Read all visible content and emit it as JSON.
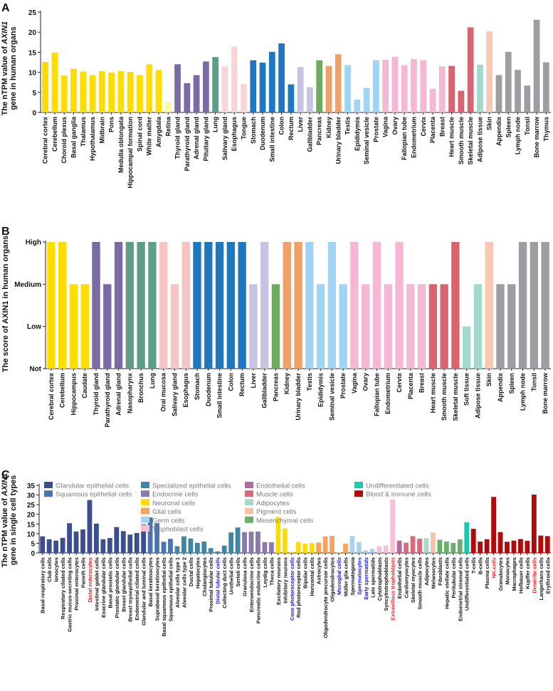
{
  "colors": {
    "neuronal": "#FFDD00",
    "neuronal_light": "#FFF6A6",
    "endocrine": "#7B6AA6",
    "lung": "#5E9E89",
    "oral_light": "#F9D6D6",
    "oral_pink": "#F5C5C5",
    "gi": "#1E78C1",
    "liver": "#C9C3E3",
    "pancreas": "#6FAB5E",
    "kidney": "#F0A16A",
    "testis": "#9FD4F4",
    "female": "#F5B7D3",
    "muscle": "#D9646F",
    "adipose": "#A3D9CB",
    "skin": "#F9C8B3",
    "immune": "#9C9EA1",
    "glandular": "#3C4E8E",
    "squamous": "#4A74B0",
    "specialized": "#3F86A4",
    "endocrine_cell": "#8A7AAC",
    "glial": "#F4A361",
    "germ": "#A9D2EE",
    "trophoblast": "#F8BFD7",
    "endothelial": "#B36A98",
    "muscle_cell": "#D96A7D",
    "adipocyte": "#A6D7C7",
    "pigment": "#F7C2A9",
    "mesenchymal": "#6AB06A",
    "undifferentiated": "#1DC9AE",
    "blood": "#B00A0A",
    "highlight_red": "#E8262A",
    "highlight_blue": "#1A1ACD"
  },
  "chart_data": [
    {
      "panel": "A",
      "type": "bar",
      "title": "",
      "xlabel": "",
      "ylabel_lines": [
        "The nTPM value of AXIN1",
        "gene in human organs"
      ],
      "ylim": [
        0,
        25
      ],
      "yticks": [
        0,
        5,
        10,
        15,
        20,
        25
      ],
      "categories": [
        "Cerebral cortex",
        "Cerebellum",
        "Choroid plexus",
        "Basal ganglia",
        "Thalamus",
        "Hypothalamus",
        "Midbrain",
        "Pons",
        "Medulla oblongata",
        "Hippocampal formation",
        "Spinal cord",
        "White matter",
        "Amygdala",
        "Retina",
        "Thyroid gland",
        "Parathyroid gland",
        "Adrenal gland",
        "Pituitary gland",
        "Lung",
        "Salivary gland",
        "Esophagus",
        "Tongue",
        "Stomach",
        "Duodenum",
        "Small intestine",
        "Colon",
        "Rectum",
        "Liver",
        "Gallbladder",
        "Pancreas",
        "Kidney",
        "Urinary bladder",
        "Testis",
        "Epididymis",
        "Seminal vesicle",
        "Prostate",
        "Vagina",
        "Ovary",
        "Fallopian tube",
        "Endometrium",
        "Cervix",
        "Placenta",
        "Breast",
        "Heart muscle",
        "Smooth muscle",
        "Skeletal muscle",
        "Adipose tissue",
        "Skin",
        "Appendix",
        "Spleen",
        "Lymph node",
        "Tonsil",
        "Bone marrow",
        "Thymus"
      ],
      "values": [
        12.6,
        14.9,
        9.2,
        10.9,
        10.2,
        9.3,
        10.3,
        9.9,
        10.3,
        10.1,
        9.3,
        12.0,
        10.6,
        2.7,
        12.0,
        7.3,
        9.3,
        12.7,
        13.8,
        11.5,
        16.4,
        7.1,
        13.0,
        12.4,
        15.1,
        17.2,
        7.0,
        11.3,
        6.3,
        13.0,
        11.6,
        14.5,
        11.8,
        3.2,
        6.1,
        13.0,
        13.1,
        13.9,
        11.8,
        13.3,
        13.0,
        5.9,
        11.5,
        11.6,
        5.4,
        21.2,
        11.9,
        20.2,
        9.3,
        15.1,
        10.6,
        6.7,
        23.1,
        12.5
      ],
      "color_keys": [
        "neuronal",
        "neuronal",
        "neuronal",
        "neuronal",
        "neuronal",
        "neuronal",
        "neuronal",
        "neuronal",
        "neuronal",
        "neuronal",
        "neuronal",
        "neuronal",
        "neuronal",
        "neuronal_light",
        "endocrine",
        "endocrine",
        "endocrine",
        "endocrine",
        "lung",
        "oral_light",
        "oral_light",
        "oral_light",
        "gi",
        "gi",
        "gi",
        "gi",
        "gi",
        "liver",
        "liver",
        "pancreas",
        "kidney",
        "kidney",
        "testis",
        "testis",
        "testis",
        "testis",
        "female",
        "female",
        "female",
        "female",
        "female",
        "female",
        "female",
        "muscle",
        "muscle",
        "muscle",
        "adipose",
        "skin",
        "immune",
        "immune",
        "immune",
        "immune",
        "immune",
        "immune"
      ]
    },
    {
      "panel": "B",
      "type": "bar",
      "title": "",
      "xlabel": "",
      "ylabel": "The score of AXIN1 in human organs",
      "ylim": [
        0,
        3
      ],
      "ytick_labels": [
        "Not",
        "Low",
        "Medium",
        "High"
      ],
      "categories": [
        "Cerebral cortex",
        "Cerebellum",
        "Hippocampus",
        "Caudate",
        "Thyroid gland",
        "Parathyroid gland",
        "Adrenal gland",
        "Nasopharynx",
        "Bronchus",
        "Lung",
        "Oral mucosa",
        "Salivary gland",
        "Esophagus",
        "Stomach",
        "Duodenum",
        "Small intestine",
        "Colon",
        "Rectum",
        "Liver",
        "Gallbladder",
        "Pancreas",
        "Kidney",
        "Urinary bladder",
        "Testis",
        "Epididymis",
        "Seminal vesicle",
        "Prostate",
        "Vagina",
        "Ovary",
        "Fallopian tube",
        "Endometrium",
        "Cervix",
        "Placenta",
        "Breast",
        "Heart muscle",
        "Smooth muscle",
        "Skeletal muscle",
        "Soft tissue",
        "Adipose tissue",
        "Skin",
        "Appendix",
        "Spleen",
        "Lymph node",
        "Tonsil",
        "Bone marrow"
      ],
      "values": [
        3,
        3,
        2,
        2,
        3,
        2,
        3,
        3,
        3,
        3,
        3,
        2,
        3,
        3,
        3,
        3,
        3,
        3,
        2,
        3,
        2,
        3,
        3,
        3,
        2,
        3,
        2,
        3,
        2,
        3,
        2,
        3,
        2,
        2,
        2,
        2,
        3,
        1,
        2,
        3,
        2,
        2,
        3,
        3,
        3
      ],
      "color_keys": [
        "neuronal",
        "neuronal",
        "neuronal",
        "neuronal",
        "endocrine",
        "endocrine",
        "endocrine",
        "lung",
        "lung",
        "lung",
        "oral_pink",
        "oral_pink",
        "oral_pink",
        "gi",
        "gi",
        "gi",
        "gi",
        "gi",
        "liver",
        "liver",
        "pancreas",
        "kidney",
        "kidney",
        "testis",
        "testis",
        "testis",
        "testis",
        "female",
        "female",
        "female",
        "female",
        "female",
        "female",
        "female",
        "muscle",
        "muscle",
        "muscle",
        "adipose",
        "adipose",
        "skin",
        "immune",
        "immune",
        "immune",
        "immune",
        "immune"
      ]
    },
    {
      "panel": "C",
      "type": "bar",
      "title": "",
      "xlabel": "",
      "ylabel_lines": [
        "The nTPM value of AXIN1",
        "gene in single cell types"
      ],
      "ylim": [
        0,
        35
      ],
      "yticks": [
        0,
        5,
        10,
        15,
        20,
        25,
        30,
        35
      ],
      "legend": [
        {
          "label": "Glandular epithelial cells",
          "color_key": "glandular"
        },
        {
          "label": "Squamous epithelial cells",
          "color_key": "squamous"
        },
        {
          "label": "Specialized epithelial cells",
          "color_key": "specialized"
        },
        {
          "label": "Endocrine cells",
          "color_key": "endocrine_cell"
        },
        {
          "label": "Neuronal cells",
          "color_key": "neuronal"
        },
        {
          "label": "Glial cells",
          "color_key": "glial"
        },
        {
          "label": "Germ cells",
          "color_key": "germ"
        },
        {
          "label": "Trophoblast cells",
          "color_key": "trophoblast"
        },
        {
          "label": "Endothelial cells",
          "color_key": "endothelial"
        },
        {
          "label": "Muscle cells",
          "color_key": "muscle_cell"
        },
        {
          "label": "Adipocytes",
          "color_key": "adipocyte"
        },
        {
          "label": "Pigment cells",
          "color_key": "pigment"
        },
        {
          "label": "Mesenchymal cells",
          "color_key": "mesenchymal"
        },
        {
          "label": "Undifferentiated cells",
          "color_key": "undifferentiated"
        },
        {
          "label": "Blood & immune cells",
          "color_key": "blood"
        }
      ],
      "categories": [
        "Basal respiratory cells",
        "Club cells",
        "Ionocytes",
        "Respiratory ciliated cells",
        "Gastric mucus-secreting cells",
        "Proximal enterocytes",
        "Paneth cells",
        "Distal enterocytes",
        "Intestinal goblet cells",
        "Exocrine glandular cells",
        "Basal prostatic cells",
        "Prostatic glandular cells",
        "Breast glandular cells",
        "Breast myoepithelial cells",
        "Endometrial ciliated cells",
        "Glandular and luminal cells",
        "Basal keratinocytes",
        "Suprabasal keratinocytes",
        "Basal squamous epithelial cells",
        "Squamous epithelial cells",
        "Alveolar cells type 1",
        "Alveolar cells type 2",
        "Ductal cells",
        "Hepatocytes",
        "Cholangiocytes",
        "Proximal tubular cells",
        "Distal tubular cells",
        "Collecting duct cells",
        "Urothelial cells",
        "Sertoli cells",
        "Granulosa cells",
        "Enteroendocrine cells",
        "Pancreatic endocrine cells",
        "Leydig cells",
        "Theca cells",
        "Excitatory neurons",
        "Inhibitory neurons",
        "Cone photoreceptor cells",
        "Rod photoreceptor cells",
        "Bipolar cells",
        "Horizontal cells",
        "Astrocytes",
        "Oligodendrocyte precursor cells",
        "Oligodendrocytes",
        "Microglial cells",
        "Müller glia cells",
        "Spermatogonia",
        "Spermatocytes",
        "Early spermatids",
        "Late spermatids",
        "Cytotrophoblasts",
        "Syncytiotrophoblasts",
        "Extravillous trophoblasts",
        "Endothelial cells",
        "Cardiomyocytes",
        "Skeletal myocytes",
        "Smooth muscle cells",
        "Adipocytes",
        "Melanocytes",
        "Fibroblasts",
        "Hepatic stellate cells",
        "Peritubular cells",
        "Endometrial stromal cells",
        "Undifferentiated cells",
        "T-cells",
        "B-cells",
        "Plasma cells",
        "NK-cells",
        "Granulocytes",
        "Monocytes",
        "Macrophages",
        "Hofbauer cells",
        "Kupffer cells",
        "Dendritic cells",
        "Langerhans cells",
        "Erythroid cells"
      ],
      "values": [
        8.6,
        7.1,
        6.4,
        7.8,
        15.4,
        11.1,
        12.2,
        27.4,
        15.2,
        7.1,
        7.7,
        13.4,
        11.3,
        9.5,
        10.3,
        14.7,
        18.4,
        15.4,
        5.8,
        7.3,
        3.5,
        8.6,
        7.5,
        5.2,
        5.9,
        2.5,
        0.8,
        3.8,
        10.6,
        13.2,
        10.8,
        11.0,
        11.1,
        5.6,
        5.5,
        18.6,
        12.7,
        0.6,
        5.7,
        4.8,
        5.1,
        5.4,
        8.6,
        8.8,
        0.2,
        4.8,
        8.8,
        5.6,
        1.3,
        2.1,
        3.4,
        3.8,
        27.6,
        6.4,
        5.3,
        8.7,
        7.4,
        7.6,
        10.6,
        6.8,
        5.9,
        5.2,
        7.0,
        15.9,
        12.5,
        5.9,
        7.1,
        29.0,
        10.8,
        5.8,
        6.4,
        7.2,
        6.3,
        30.2,
        9.0,
        8.7
      ],
      "color_keys": [
        "glandular",
        "glandular",
        "glandular",
        "glandular",
        "glandular",
        "glandular",
        "glandular",
        "glandular",
        "glandular",
        "glandular",
        "glandular",
        "glandular",
        "glandular",
        "glandular",
        "glandular",
        "glandular",
        "squamous",
        "squamous",
        "squamous",
        "squamous",
        "specialized",
        "specialized",
        "specialized",
        "specialized",
        "specialized",
        "specialized",
        "specialized",
        "specialized",
        "specialized",
        "specialized",
        "endocrine_cell",
        "endocrine_cell",
        "endocrine_cell",
        "endocrine_cell",
        "endocrine_cell",
        "neuronal",
        "neuronal",
        "neuronal",
        "neuronal",
        "neuronal",
        "neuronal",
        "glial",
        "glial",
        "glial",
        "glial",
        "glial",
        "germ",
        "germ",
        "germ",
        "germ",
        "trophoblast",
        "trophoblast",
        "trophoblast",
        "endothelial",
        "muscle_cell",
        "muscle_cell",
        "muscle_cell",
        "adipocyte",
        "pigment",
        "mesenchymal",
        "mesenchymal",
        "mesenchymal",
        "mesenchymal",
        "undifferentiated",
        "blood",
        "blood",
        "blood",
        "blood",
        "blood",
        "blood",
        "blood",
        "blood",
        "blood",
        "blood",
        "blood",
        "blood"
      ],
      "label_highlights": {
        "Distal enterocytes": "highlight_red",
        "Extravillous trophoblasts": "highlight_red",
        "NK-cells": "highlight_red",
        "Dendritic cells": "highlight_red",
        "Distal tubular cells": "highlight_blue",
        "Cone photoreceptor cells": "highlight_blue",
        "Microglial cells": "highlight_blue",
        "Spermatocytes": "highlight_blue",
        "Early spermatids": "highlight_blue"
      }
    }
  ]
}
